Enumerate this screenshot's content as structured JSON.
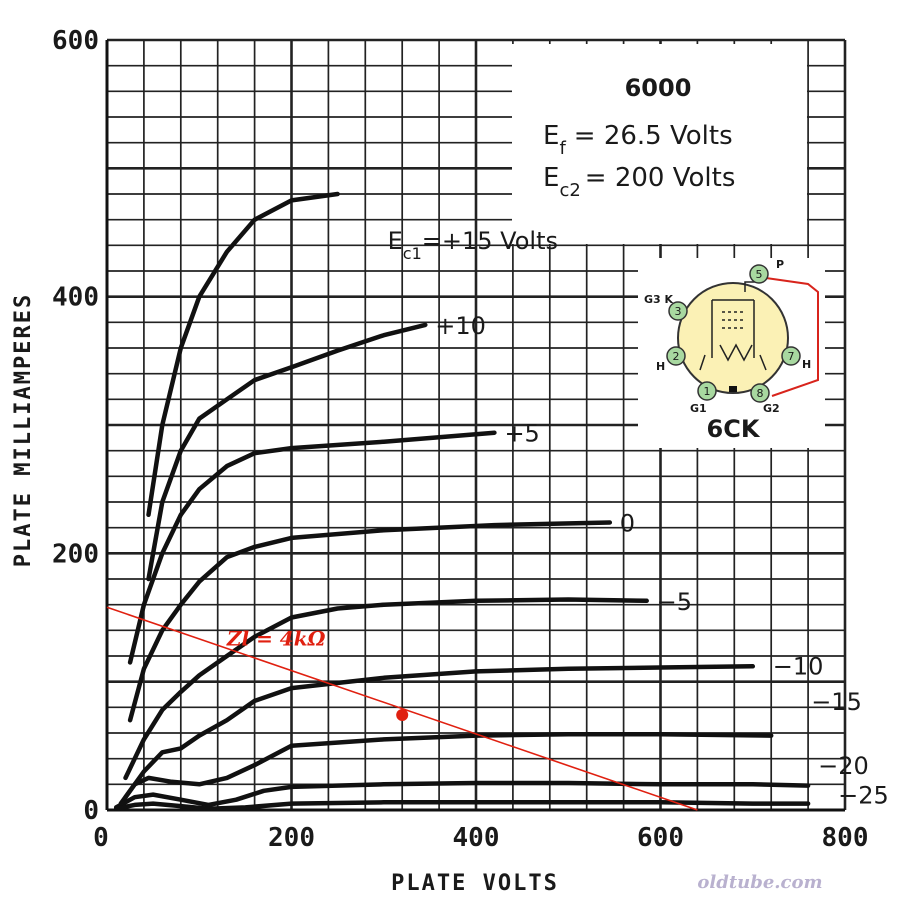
{
  "chart_data": {
    "type": "line",
    "title": "6000",
    "info": {
      "ef_symbol": "E",
      "ef_sub": "f",
      "ef_value": "=  26.5 Volts",
      "ec2_symbol": "E",
      "ec2_sub": "c2",
      "ec2_value": "=   200 Volts"
    },
    "xlabel": "PLATE VOLTS",
    "ylabel": "PLATE MILLIAMPERES",
    "xlim": [
      0,
      800
    ],
    "ylim": [
      0,
      600
    ],
    "x_ticks": [
      "0",
      "200",
      "400",
      "600",
      "800"
    ],
    "y_ticks": [
      "0",
      "200",
      "400",
      "600"
    ],
    "grid": true,
    "series": [
      {
        "name": "+15",
        "label_parts": [
          "E",
          "c1",
          "=+15 Volts"
        ],
        "points": [
          [
            45,
            230
          ],
          [
            60,
            300
          ],
          [
            80,
            360
          ],
          [
            100,
            400
          ],
          [
            130,
            435
          ],
          [
            160,
            460
          ],
          [
            200,
            475
          ],
          [
            250,
            480
          ]
        ]
      },
      {
        "name": "+10",
        "label_parts": [
          "",
          "",
          "+10"
        ],
        "points": [
          [
            45,
            180
          ],
          [
            60,
            240
          ],
          [
            80,
            280
          ],
          [
            100,
            305
          ],
          [
            130,
            320
          ],
          [
            160,
            335
          ],
          [
            200,
            345
          ],
          [
            250,
            358
          ],
          [
            300,
            370
          ],
          [
            345,
            378
          ]
        ]
      },
      {
        "name": "+5",
        "label_parts": [
          "",
          "",
          "+5"
        ],
        "points": [
          [
            25,
            115
          ],
          [
            40,
            160
          ],
          [
            60,
            200
          ],
          [
            80,
            230
          ],
          [
            100,
            250
          ],
          [
            130,
            268
          ],
          [
            160,
            278
          ],
          [
            200,
            282
          ],
          [
            300,
            287
          ],
          [
            420,
            294
          ]
        ]
      },
      {
        "name": "0",
        "label_parts": [
          "",
          "",
          "0"
        ],
        "points": [
          [
            25,
            70
          ],
          [
            40,
            110
          ],
          [
            60,
            140
          ],
          [
            80,
            160
          ],
          [
            100,
            178
          ],
          [
            130,
            197
          ],
          [
            160,
            205
          ],
          [
            200,
            212
          ],
          [
            300,
            218
          ],
          [
            420,
            222
          ],
          [
            545,
            224
          ]
        ]
      },
      {
        "name": "-5",
        "label_parts": [
          "",
          "",
          "−5"
        ],
        "points": [
          [
            20,
            25
          ],
          [
            40,
            55
          ],
          [
            60,
            78
          ],
          [
            80,
            92
          ],
          [
            100,
            105
          ],
          [
            130,
            120
          ],
          [
            160,
            135
          ],
          [
            200,
            150
          ],
          [
            250,
            157
          ],
          [
            300,
            160
          ],
          [
            400,
            163
          ],
          [
            500,
            164
          ],
          [
            585,
            163
          ]
        ]
      },
      {
        "name": "-10",
        "label_parts": [
          "",
          "",
          "−10"
        ],
        "points": [
          [
            20,
            10
          ],
          [
            40,
            30
          ],
          [
            60,
            45
          ],
          [
            80,
            48
          ],
          [
            100,
            58
          ],
          [
            130,
            70
          ],
          [
            160,
            85
          ],
          [
            200,
            95
          ],
          [
            300,
            103
          ],
          [
            400,
            108
          ],
          [
            500,
            110
          ],
          [
            600,
            111
          ],
          [
            700,
            112
          ]
        ]
      },
      {
        "name": "-15",
        "label_parts": [
          "",
          "",
          "−15"
        ],
        "points": [
          [
            15,
            5
          ],
          [
            30,
            20
          ],
          [
            45,
            25
          ],
          [
            70,
            22
          ],
          [
            100,
            20
          ],
          [
            130,
            25
          ],
          [
            160,
            35
          ],
          [
            200,
            50
          ],
          [
            300,
            55
          ],
          [
            400,
            58
          ],
          [
            500,
            59
          ],
          [
            600,
            59
          ],
          [
            720,
            58
          ]
        ]
      },
      {
        "name": "-20",
        "label_parts": [
          "",
          "",
          "−20"
        ],
        "points": [
          [
            10,
            2
          ],
          [
            30,
            10
          ],
          [
            50,
            12
          ],
          [
            80,
            8
          ],
          [
            110,
            4
          ],
          [
            140,
            8
          ],
          [
            170,
            15
          ],
          [
            200,
            18
          ],
          [
            300,
            20
          ],
          [
            400,
            21
          ],
          [
            500,
            21
          ],
          [
            600,
            20
          ],
          [
            700,
            20
          ],
          [
            760,
            19
          ]
        ]
      },
      {
        "name": "-25",
        "label_parts": [
          "",
          "",
          "−25"
        ],
        "points": [
          [
            10,
            1
          ],
          [
            30,
            4
          ],
          [
            50,
            5
          ],
          [
            80,
            3
          ],
          [
            110,
            1
          ],
          [
            150,
            2
          ],
          [
            200,
            5
          ],
          [
            300,
            6
          ],
          [
            400,
            6
          ],
          [
            500,
            6
          ],
          [
            600,
            6
          ],
          [
            700,
            5
          ],
          [
            760,
            5
          ]
        ]
      }
    ],
    "load_line": {
      "label": "Zl = 4kΩ",
      "color": "#e02010",
      "start": [
        0,
        158
      ],
      "end": [
        640,
        0
      ],
      "operating_point": [
        320,
        74
      ]
    }
  },
  "socket": {
    "name": "6CK",
    "pins": [
      {
        "num": "1",
        "tag": "G1"
      },
      {
        "num": "2",
        "tag": "H"
      },
      {
        "num": "3",
        "tag": "G3 K"
      },
      {
        "num": "5",
        "tag": "P"
      },
      {
        "num": "7",
        "tag": "H"
      },
      {
        "num": "8",
        "tag": "G2"
      }
    ]
  },
  "watermark": "oldtube.com"
}
